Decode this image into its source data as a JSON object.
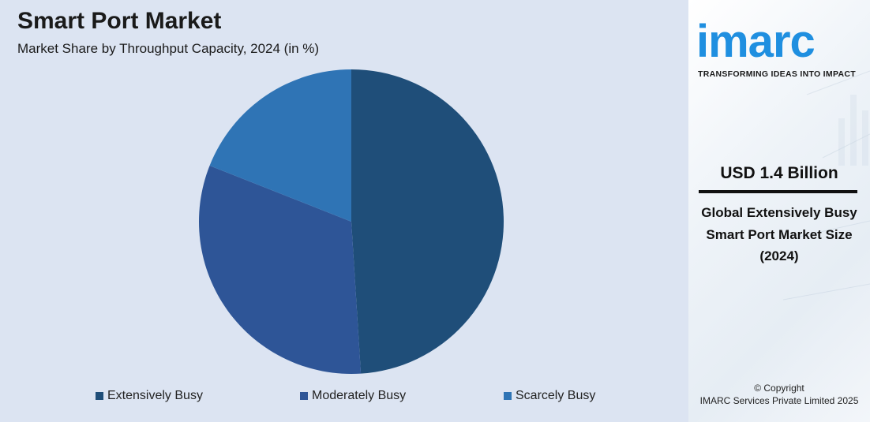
{
  "chart_data": {
    "type": "pie",
    "title": "Smart Port Market",
    "subtitle": "Market Share by Throughput Capacity, 2024 (in %)",
    "categories": [
      "Extensively Busy",
      "Moderately Busy",
      "Scarcely Busy"
    ],
    "values": [
      49,
      32,
      19
    ],
    "colors": [
      "#1f4e79",
      "#2e5597",
      "#2f74b5"
    ],
    "legend_position": "bottom"
  },
  "brand": {
    "logo_text": "imarc",
    "tagline": "TRANSFORMING IDEAS INTO IMPACT",
    "color": "#1f8fe0"
  },
  "highlight": {
    "value": "USD 1.4 Billion",
    "description": "Global Extensively Busy Smart Port Market Size (2024)"
  },
  "footer": {
    "copyright_line1": "© Copyright",
    "copyright_line2": "IMARC Services Private Limited 2025"
  }
}
